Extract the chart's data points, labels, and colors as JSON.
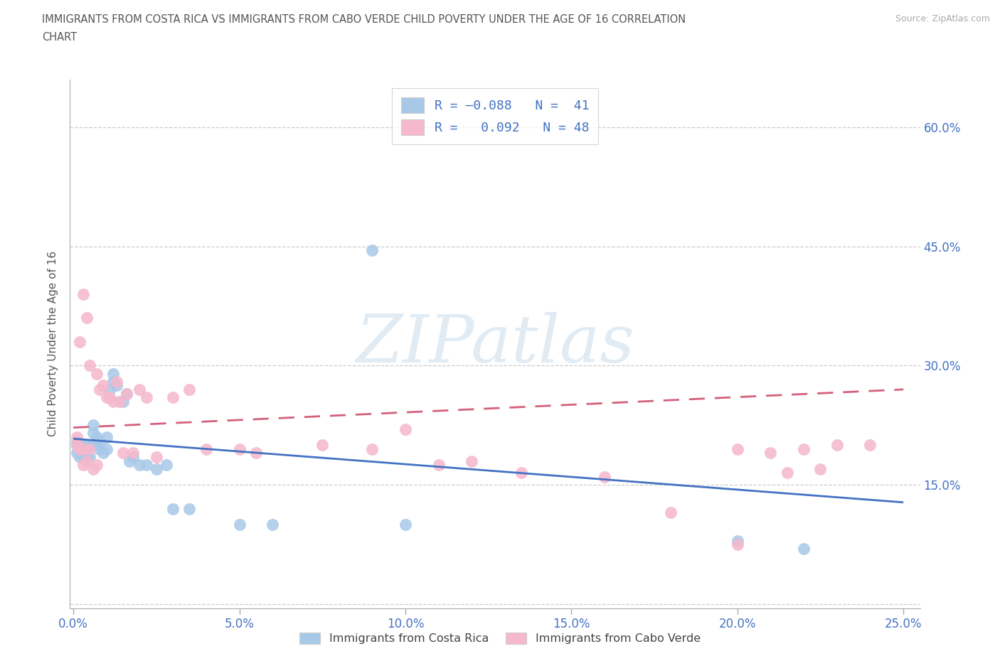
{
  "title_line1": "IMMIGRANTS FROM COSTA RICA VS IMMIGRANTS FROM CABO VERDE CHILD POVERTY UNDER THE AGE OF 16 CORRELATION",
  "title_line2": "CHART",
  "source": "Source: ZipAtlas.com",
  "ylabel_label": "Child Poverty Under the Age of 16",
  "xlim": [
    -0.001,
    0.255
  ],
  "ylim": [
    -0.005,
    0.66
  ],
  "xticks": [
    0.0,
    0.05,
    0.1,
    0.15,
    0.2,
    0.25
  ],
  "xticklabels": [
    "0.0%",
    "5.0%",
    "10.0%",
    "15.0%",
    "20.0%",
    "25.0%"
  ],
  "yticks": [
    0.0,
    0.15,
    0.3,
    0.45,
    0.6
  ],
  "yticklabels_left": [
    "",
    "",
    "",
    "",
    ""
  ],
  "yticklabels_right": [
    "",
    "15.0%",
    "30.0%",
    "45.0%",
    "60.0%"
  ],
  "legend_cr_r": "-0.088",
  "legend_cr_n": "41",
  "legend_cv_r": "0.092",
  "legend_cv_n": "48",
  "costa_rica_color": "#a8c8e8",
  "cabo_verde_color": "#f5b8cc",
  "costa_rica_line_color": "#4472c4",
  "cabo_verde_line_color": "#d4607a",
  "watermark_text": "ZIPatlas",
  "bottom_legend_cr": "Immigrants from Costa Rica",
  "bottom_legend_cv": "Immigrants from Cabo Verde",
  "costa_rica_x": [
    0.001,
    0.001,
    0.001,
    0.002,
    0.002,
    0.003,
    0.003,
    0.004,
    0.004,
    0.005,
    0.005,
    0.006,
    0.006,
    0.006,
    0.007,
    0.007,
    0.008,
    0.008,
    0.009,
    0.01,
    0.01,
    0.011,
    0.012,
    0.012,
    0.013,
    0.015,
    0.016,
    0.017,
    0.018,
    0.02,
    0.022,
    0.025,
    0.028,
    0.03,
    0.035,
    0.05,
    0.06,
    0.09,
    0.1,
    0.2,
    0.22
  ],
  "costa_rica_y": [
    0.19,
    0.2,
    0.205,
    0.185,
    0.2,
    0.185,
    0.2,
    0.185,
    0.2,
    0.185,
    0.2,
    0.2,
    0.215,
    0.225,
    0.2,
    0.21,
    0.195,
    0.205,
    0.19,
    0.195,
    0.21,
    0.27,
    0.28,
    0.29,
    0.275,
    0.255,
    0.265,
    0.18,
    0.185,
    0.175,
    0.175,
    0.17,
    0.175,
    0.12,
    0.12,
    0.1,
    0.1,
    0.445,
    0.1,
    0.08,
    0.07
  ],
  "cabo_verde_x": [
    0.001,
    0.001,
    0.002,
    0.002,
    0.003,
    0.003,
    0.003,
    0.004,
    0.004,
    0.005,
    0.005,
    0.006,
    0.007,
    0.007,
    0.008,
    0.009,
    0.01,
    0.011,
    0.012,
    0.013,
    0.014,
    0.015,
    0.016,
    0.018,
    0.02,
    0.022,
    0.025,
    0.03,
    0.035,
    0.04,
    0.05,
    0.055,
    0.075,
    0.09,
    0.1,
    0.11,
    0.12,
    0.135,
    0.16,
    0.18,
    0.2,
    0.21,
    0.225,
    0.24,
    0.2,
    0.215,
    0.23,
    0.22
  ],
  "cabo_verde_y": [
    0.2,
    0.21,
    0.195,
    0.33,
    0.175,
    0.195,
    0.39,
    0.18,
    0.36,
    0.195,
    0.3,
    0.17,
    0.175,
    0.29,
    0.27,
    0.275,
    0.26,
    0.26,
    0.255,
    0.28,
    0.255,
    0.19,
    0.265,
    0.19,
    0.27,
    0.26,
    0.185,
    0.26,
    0.27,
    0.195,
    0.195,
    0.19,
    0.2,
    0.195,
    0.22,
    0.175,
    0.18,
    0.165,
    0.16,
    0.115,
    0.075,
    0.19,
    0.17,
    0.2,
    0.195,
    0.165,
    0.2,
    0.195
  ]
}
